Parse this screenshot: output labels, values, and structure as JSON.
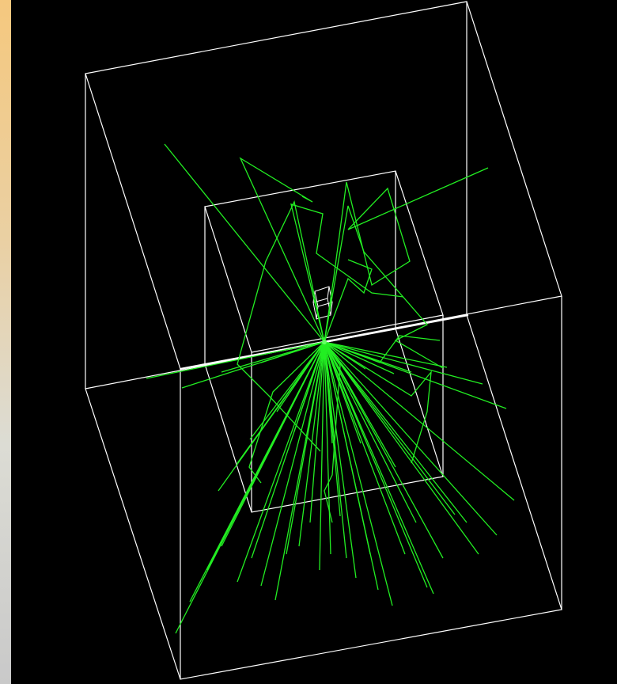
{
  "scene": {
    "background_color": "#000000",
    "frame_strip_color": "#f5c87e",
    "detector_color": "#ffffff",
    "track_color": "#22ee22",
    "vertex_color": "#66ff66"
  }
}
